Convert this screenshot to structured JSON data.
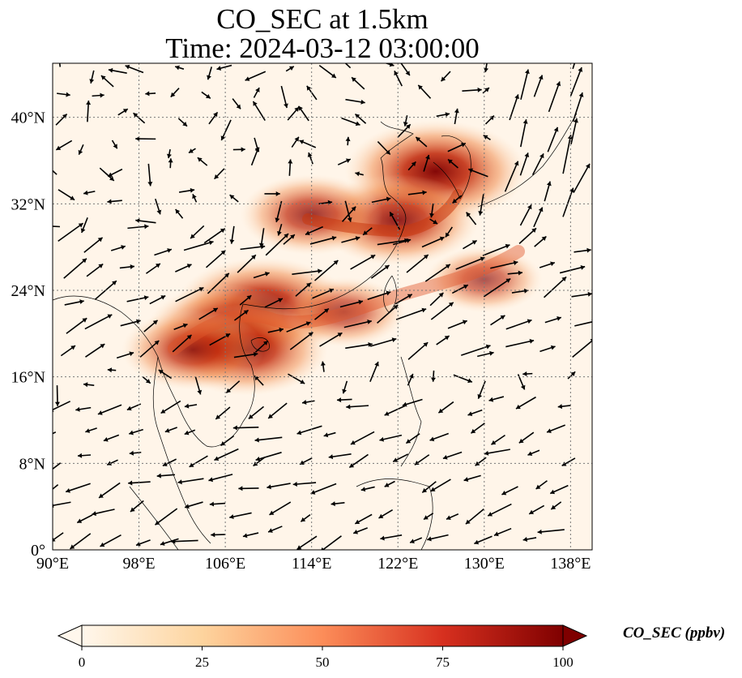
{
  "title": {
    "line1": "CO_SEC at 1.5km",
    "line2": "Time: 2024-03-12 03:00:00"
  },
  "map": {
    "projection": "PlateCarree",
    "lon_range": [
      90,
      140
    ],
    "lat_range": [
      0,
      45
    ],
    "gridlines": "dotted",
    "x_ticks": [
      {
        "value": 90,
        "label": "90°E"
      },
      {
        "value": 98,
        "label": "98°E"
      },
      {
        "value": 106,
        "label": "106°E"
      },
      {
        "value": 114,
        "label": "114°E"
      },
      {
        "value": 122,
        "label": "122°E"
      },
      {
        "value": 130,
        "label": "130°E"
      },
      {
        "value": 138,
        "label": "138°E"
      }
    ],
    "y_ticks": [
      {
        "value": 0,
        "label": "0°"
      },
      {
        "value": 8,
        "label": "8°N"
      },
      {
        "value": 16,
        "label": "16°N"
      },
      {
        "value": 24,
        "label": "24°N"
      },
      {
        "value": 32,
        "label": "32°N"
      },
      {
        "value": 40,
        "label": "40°N"
      }
    ],
    "field_description": "CO_SEC concentration with wind vectors",
    "plumes": [
      {
        "lon": 125.5,
        "lat": 35.0,
        "value": 100
      },
      {
        "lon": 122.0,
        "lat": 30.5,
        "value": 85
      },
      {
        "lon": 109.5,
        "lat": 22.5,
        "value": 95
      },
      {
        "lon": 106.0,
        "lat": 20.5,
        "value": 80
      },
      {
        "lon": 108.0,
        "lat": 18.5,
        "value": 85
      },
      {
        "lon": 103.0,
        "lat": 18.5,
        "value": 70
      },
      {
        "lon": 114.0,
        "lat": 31.0,
        "value": 70
      },
      {
        "lon": 117.0,
        "lat": 22.0,
        "value": 55
      },
      {
        "lon": 130.0,
        "lat": 25.0,
        "value": 50
      }
    ],
    "colors": {
      "low": "#fff5eb",
      "mid": "#fdae6b",
      "high": "#d94801",
      "max": "#7f0000"
    }
  },
  "colorbar": {
    "label": "CO_SEC (ppbv)",
    "ticks": [
      {
        "value": 0,
        "label": "0"
      },
      {
        "value": 25,
        "label": "25"
      },
      {
        "value": 50,
        "label": "50"
      },
      {
        "value": 75,
        "label": "75"
      },
      {
        "value": 100,
        "label": "100"
      }
    ],
    "range": [
      0,
      100
    ],
    "extend": "both",
    "cmap": "OrRd"
  }
}
